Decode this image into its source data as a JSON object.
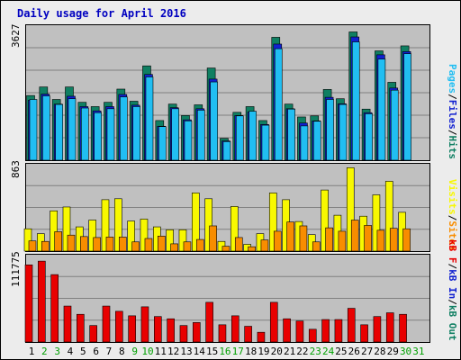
{
  "title": "Daily usage for April 2016",
  "colors": {
    "hits": "#0f7f62",
    "files": "#1020d0",
    "pages": "#21bef2",
    "visits": "#f8f800",
    "sites": "#f88d00",
    "kb": "#e80000",
    "weekend": "#00a000",
    "grid": "#808080"
  },
  "chart_data": [
    {
      "type": "bar",
      "title": "Daily usage for April 2016",
      "categories": [
        "1",
        "2",
        "3",
        "4",
        "5",
        "6",
        "7",
        "8",
        "9",
        "10",
        "11",
        "12",
        "13",
        "14",
        "15",
        "16",
        "17",
        "18",
        "19",
        "20",
        "21",
        "22",
        "23",
        "24",
        "25",
        "26",
        "27",
        "28",
        "29",
        "30",
        "31"
      ],
      "ylim": [
        0,
        3627
      ],
      "ylabel_max": "3627",
      "legend": [
        {
          "text": "Pages",
          "color": "#21bef2"
        },
        {
          "text": "Files",
          "color": "#1020d0"
        },
        {
          "text": "Hits",
          "color": "#0f7f62"
        }
      ],
      "series": [
        {
          "name": "Hits",
          "values": [
            1810,
            2050,
            1700,
            2050,
            1620,
            1500,
            1620,
            1990,
            1650,
            2640,
            1110,
            1570,
            1250,
            1550,
            2580,
            610,
            1340,
            1500,
            1110,
            3440,
            1570,
            1210,
            1240,
            1980,
            1720,
            3590,
            1430,
            3060,
            2180,
            3200,
            0
          ]
        },
        {
          "name": "Files",
          "values": [
            1680,
            1850,
            1570,
            1790,
            1500,
            1380,
            1500,
            1840,
            1540,
            2400,
            950,
            1470,
            1130,
            1440,
            2270,
            540,
            1250,
            1350,
            1000,
            3250,
            1440,
            1040,
            1100,
            1760,
            1580,
            3450,
            1330,
            2950,
            2020,
            3040,
            0
          ]
        },
        {
          "name": "Pages",
          "values": [
            1700,
            1800,
            1560,
            1720,
            1460,
            1330,
            1440,
            1770,
            1500,
            2330,
            940,
            1440,
            1100,
            1400,
            2190,
            520,
            1240,
            1370,
            980,
            3120,
            1430,
            960,
            1090,
            1700,
            1560,
            3310,
            1300,
            2830,
            1960,
            2980,
            0
          ]
        }
      ]
    },
    {
      "type": "bar",
      "categories": [
        "1",
        "2",
        "3",
        "4",
        "5",
        "6",
        "7",
        "8",
        "9",
        "10",
        "11",
        "12",
        "13",
        "14",
        "15",
        "16",
        "17",
        "18",
        "19",
        "20",
        "21",
        "22",
        "23",
        "24",
        "25",
        "26",
        "27",
        "28",
        "29",
        "30",
        "31"
      ],
      "ylim": [
        0,
        863
      ],
      "ylabel_max": "863",
      "legend": [
        {
          "text": "Visits",
          "color": "#f8f800"
        },
        {
          "text": "Sites",
          "color": "#f88d00"
        }
      ],
      "series": [
        {
          "name": "Visits",
          "values": [
            230,
            180,
            415,
            455,
            250,
            320,
            530,
            540,
            310,
            330,
            250,
            220,
            220,
            600,
            540,
            100,
            460,
            70,
            180,
            600,
            530,
            305,
            170,
            630,
            370,
            860,
            360,
            580,
            720,
            400,
            0
          ]
        },
        {
          "name": "Sites",
          "values": [
            105,
            100,
            200,
            165,
            150,
            140,
            145,
            145,
            95,
            130,
            155,
            75,
            95,
            120,
            260,
            50,
            140,
            45,
            115,
            205,
            300,
            260,
            95,
            240,
            205,
            320,
            265,
            215,
            235,
            230,
            0
          ]
        }
      ]
    },
    {
      "type": "bar",
      "categories": [
        "1",
        "2",
        "3",
        "4",
        "5",
        "6",
        "7",
        "8",
        "9",
        "10",
        "11",
        "12",
        "13",
        "14",
        "15",
        "16",
        "17",
        "18",
        "19",
        "20",
        "21",
        "22",
        "23",
        "24",
        "25",
        "26",
        "27",
        "28",
        "29",
        "30",
        "31"
      ],
      "ylim": [
        0,
        111775
      ],
      "ylabel_max": "111775",
      "legend": [
        {
          "text": "kB F",
          "color": "#e80000"
        },
        {
          "text": "kB In",
          "color": "#1020d0"
        },
        {
          "text": "kB Out",
          "color": "#0f7f62"
        }
      ],
      "series": [
        {
          "name": "kB F",
          "values": [
            103000,
            108000,
            90000,
            48000,
            37000,
            22000,
            48000,
            41000,
            35000,
            47000,
            34000,
            31000,
            22000,
            26000,
            53000,
            23000,
            35000,
            21000,
            13000,
            53000,
            31000,
            28000,
            17000,
            30000,
            30000,
            45000,
            23000,
            34000,
            39000,
            37000,
            0
          ]
        }
      ]
    }
  ]
}
